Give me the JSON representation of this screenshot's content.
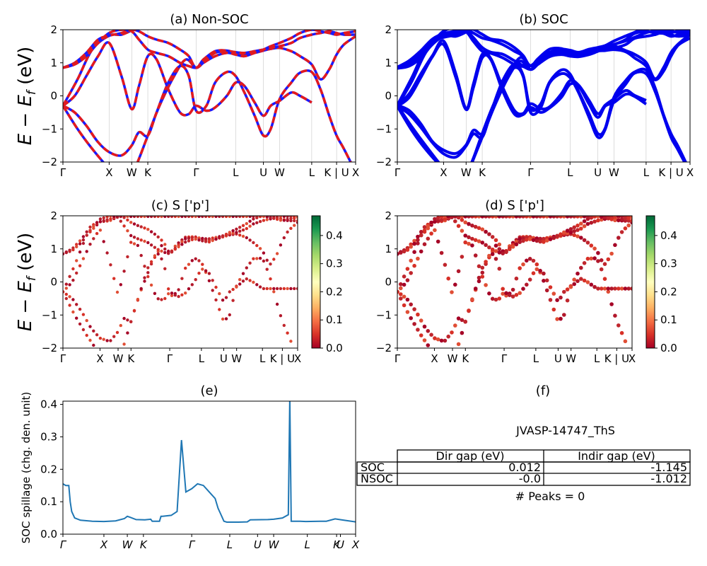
{
  "colors": {
    "nonsoc_a": "#e41a1c",
    "nonsoc_b": "#1a1aff",
    "soc": "#0000ee",
    "spillage": "#1f77b4"
  },
  "chart_data": [
    {
      "id": "a",
      "type": "line",
      "title": "(a) Non-SOC",
      "ylabel": "E − E_f (eV)",
      "ylim": [
        -2,
        2
      ],
      "yticks": [
        "2",
        "1",
        "0",
        "−1",
        "−2"
      ],
      "kpoints": [
        {
          "label": "Γ",
          "x": 0
        },
        {
          "label": "X",
          "x": 0.158
        },
        {
          "label": "W",
          "x": 0.235
        },
        {
          "label": "K",
          "x": 0.29
        },
        {
          "label": "Γ",
          "x": 0.455
        },
        {
          "label": "L",
          "x": 0.59
        },
        {
          "label": "U",
          "x": 0.685
        },
        {
          "label": "W",
          "x": 0.74
        },
        {
          "label": "L",
          "x": 0.85
        },
        {
          "label": "K | U",
          "x": 0.935
        },
        {
          "label": "X",
          "x": 1.0
        }
      ],
      "series": [
        {
          "x": [
            0,
            0.05,
            0.1,
            0.158,
            0.2,
            0.235
          ],
          "y": [
            -0.3,
            0.5,
            1.4,
            1.82,
            1.85,
            1.98
          ]
        },
        {
          "x": [
            0,
            0.05,
            0.1,
            0.158,
            0.2,
            0.235,
            0.26,
            0.29,
            0.33,
            0.38,
            0.42,
            0.455,
            0.48,
            0.52,
            0.56,
            0.59,
            0.62,
            0.655,
            0.685,
            0.71,
            0.74,
            0.78,
            0.81,
            0.85,
            0.88,
            0.91,
            0.935,
            0.96,
            1.0
          ],
          "y": [
            -0.3,
            -1.0,
            -1.6,
            -2.2,
            -2.5,
            -2.4,
            -1.9,
            -1.2,
            -0.3,
            0.6,
            1.1,
            0.85,
            1.1,
            1.35,
            1.37,
            1.3,
            1.25,
            1.3,
            1.37,
            1.42,
            1.45,
            1.35,
            1.2,
            0.95,
            0.5,
            0.8,
            1.25,
            1.55,
            1.8
          ]
        },
        {
          "x": [
            0,
            0.04,
            0.08,
            0.12,
            0.158,
            0.2,
            0.235,
            0.26,
            0.29,
            0.32,
            0.36,
            0.4,
            0.43,
            0.455,
            0.49,
            0.52,
            0.56,
            0.59,
            0.62,
            0.655,
            0.685,
            0.71,
            0.74,
            0.78,
            0.81,
            0.85,
            0.88,
            0.91,
            0.935,
            0.96,
            1.0
          ],
          "y": [
            -0.3,
            -0.5,
            -0.9,
            -1.4,
            -1.7,
            -1.8,
            -1.5,
            -1.1,
            -1.2,
            -0.5,
            0.4,
            0.9,
            0.6,
            -0.45,
            -0.3,
            0.4,
            0.72,
            0.6,
            0.1,
            -0.6,
            -1.2,
            -1.0,
            -0.1,
            0.4,
            0.7,
            0.72,
            0.2,
            -0.6,
            -1.2,
            -1.6,
            -2.3
          ]
        },
        {
          "x": [
            0,
            0.04,
            0.08,
            0.12,
            0.158,
            0.2,
            0.235,
            0.26,
            0.29,
            0.32,
            0.36,
            0.4,
            0.43,
            0.455,
            0.49,
            0.52,
            0.56,
            0.59,
            0.62,
            0.655,
            0.685,
            0.71,
            0.74,
            0.78,
            0.81,
            0.85
          ],
          "y": [
            -0.3,
            0,
            0.6,
            1.2,
            1.6,
            0.6,
            -0.4,
            0.3,
            1.2,
            1.1,
            0.2,
            -0.5,
            -0.55,
            -0.3,
            -0.45,
            -0.35,
            0.0,
            0.4,
            0.3,
            -0.2,
            -0.6,
            -0.3,
            -0.15,
            0.1,
            0.0,
            -0.2
          ]
        },
        {
          "x": [
            0,
            0.04,
            0.08,
            0.12,
            0.158,
            0.2,
            0.235,
            0.26,
            0.29,
            0.32,
            0.36,
            0.4,
            0.43,
            0.455,
            0.49,
            0.52,
            0.56,
            0.59,
            0.62,
            0.655,
            0.685,
            0.71,
            0.74,
            0.78,
            0.81,
            0.85,
            0.88,
            0.91,
            0.935,
            0.96,
            1.0
          ],
          "y": [
            0.85,
            1.0,
            1.3,
            1.7,
            1.82,
            1.9,
            2.0,
            1.95,
            1.8,
            1.7,
            1.6,
            1.4,
            1.2,
            0.85,
            1.1,
            1.3,
            1.35,
            1.32,
            1.3,
            1.35,
            1.4,
            1.45,
            1.5,
            1.6,
            1.75,
            1.85,
            1.9,
            1.95,
            1.9,
            1.85,
            1.85
          ]
        },
        {
          "x": [
            0,
            0.04,
            0.08,
            0.12,
            0.158,
            0.2,
            0.235,
            0.26,
            0.29,
            0.32,
            0.36,
            0.4,
            0.43,
            0.455,
            0.48,
            0.52,
            0.56,
            0.59,
            0.62,
            0.655,
            0.685,
            0.71,
            0.74,
            0.78,
            0.81,
            0.85,
            0.88,
            0.91,
            0.935,
            0.96,
            1.0
          ],
          "y": [
            0.85,
            0.95,
            1.2,
            1.6,
            1.9,
            2.0,
            1.95,
            1.7,
            1.4,
            1.3,
            1.2,
            1.0,
            0.9,
            0.85,
            1.0,
            1.2,
            1.3,
            1.25,
            1.2,
            1.3,
            1.4,
            1.5,
            1.6,
            1.75,
            1.9,
            2.0,
            1.95,
            1.9,
            1.85,
            1.9,
            1.95
          ]
        }
      ]
    },
    {
      "id": "b",
      "type": "line",
      "title": "(b) SOC",
      "ylim": [
        -2,
        2
      ],
      "yticks": [
        "2",
        "1",
        "0",
        "−1",
        "−2"
      ],
      "kpoints": [
        {
          "label": "Γ",
          "x": 0
        },
        {
          "label": "X",
          "x": 0.158
        },
        {
          "label": "W",
          "x": 0.235
        },
        {
          "label": "K",
          "x": 0.29
        },
        {
          "label": "Γ",
          "x": 0.455
        },
        {
          "label": "L",
          "x": 0.59
        },
        {
          "label": "U",
          "x": 0.685
        },
        {
          "label": "W",
          "x": 0.74
        },
        {
          "label": "L",
          "x": 0.85
        },
        {
          "label": "K | U",
          "x": 0.935
        },
        {
          "label": "X",
          "x": 1.0
        }
      ]
    },
    {
      "id": "c",
      "type": "scatter",
      "title": "(c)  S ['p']",
      "ylabel": "E − E_f (eV)",
      "ylim": [
        -2,
        2
      ],
      "yticks": [
        "2",
        "1",
        "0",
        "−1",
        "−2"
      ],
      "colorbar": {
        "min": 0.0,
        "max": 0.47,
        "ticks": [
          "0.4",
          "0.3",
          "0.2",
          "0.1",
          "0.0"
        ]
      },
      "kpoints": [
        {
          "label": "Γ",
          "x": 0
        },
        {
          "label": "X",
          "x": 0.158
        },
        {
          "label": "W",
          "x": 0.235
        },
        {
          "label": "K",
          "x": 0.29
        },
        {
          "label": "Γ",
          "x": 0.455
        },
        {
          "label": "L",
          "x": 0.59
        },
        {
          "label": "U",
          "x": 0.685
        },
        {
          "label": "W",
          "x": 0.74
        },
        {
          "label": "L",
          "x": 0.85
        },
        {
          "label": "K | U",
          "x": 0.935
        },
        {
          "label": "X",
          "x": 1.0
        }
      ]
    },
    {
      "id": "d",
      "type": "scatter",
      "title": "(d) S ['p']",
      "ylim": [
        -2,
        2
      ],
      "yticks": [
        "2",
        "1",
        "0",
        "−1",
        "−2"
      ],
      "colorbar": {
        "min": 0.0,
        "max": 0.47,
        "ticks": [
          "0.4",
          "0.3",
          "0.2",
          "0.1",
          "0.0"
        ]
      },
      "kpoints": [
        {
          "label": "Γ",
          "x": 0
        },
        {
          "label": "X",
          "x": 0.158
        },
        {
          "label": "W",
          "x": 0.235
        },
        {
          "label": "K",
          "x": 0.29
        },
        {
          "label": "Γ",
          "x": 0.455
        },
        {
          "label": "L",
          "x": 0.59
        },
        {
          "label": "U",
          "x": 0.685
        },
        {
          "label": "W",
          "x": 0.74
        },
        {
          "label": "L",
          "x": 0.85
        },
        {
          "label": "K | U",
          "x": 0.935
        },
        {
          "label": "X",
          "x": 1.0
        }
      ]
    },
    {
      "id": "e",
      "type": "line",
      "title": "(e)",
      "ylabel": "SOC spillage (chg. den. unit)",
      "ylim": [
        0,
        0.41
      ],
      "yticks": [
        {
          "label": "0.4",
          "v": 0.4
        },
        {
          "label": "0.3",
          "v": 0.3
        },
        {
          "label": "0.2",
          "v": 0.2
        },
        {
          "label": "0.1",
          "v": 0.1
        },
        {
          "label": "0.0",
          "v": 0.0
        }
      ],
      "kpoints": [
        {
          "label": "Γ",
          "x": 0
        },
        {
          "label": "X",
          "x": 0.14
        },
        {
          "label": "W",
          "x": 0.22
        },
        {
          "label": "K",
          "x": 0.275
        },
        {
          "label": "Γ",
          "x": 0.44
        },
        {
          "label": "L",
          "x": 0.57
        },
        {
          "label": "U",
          "x": 0.665
        },
        {
          "label": "W",
          "x": 0.72
        },
        {
          "label": "L",
          "x": 0.835
        },
        {
          "label": "K",
          "x": 0.935
        },
        {
          "label": "U",
          "x": 0.948
        },
        {
          "label": "X",
          "x": 1.0
        }
      ],
      "x": [
        0,
        0.01,
        0.02,
        0.025,
        0.03,
        0.04,
        0.06,
        0.1,
        0.14,
        0.18,
        0.21,
        0.22,
        0.23,
        0.25,
        0.28,
        0.3,
        0.305,
        0.33,
        0.335,
        0.34,
        0.37,
        0.39,
        0.405,
        0.42,
        0.44,
        0.46,
        0.48,
        0.5,
        0.52,
        0.53,
        0.54,
        0.55,
        0.56,
        0.6,
        0.63,
        0.64,
        0.7,
        0.72,
        0.75,
        0.77,
        0.775,
        0.78,
        0.79,
        0.81,
        0.83,
        0.88,
        0.9,
        0.93,
        0.96,
        1.0
      ],
      "y": [
        0.155,
        0.15,
        0.15,
        0.1,
        0.07,
        0.05,
        0.043,
        0.04,
        0.039,
        0.041,
        0.048,
        0.055,
        0.052,
        0.045,
        0.044,
        0.046,
        0.04,
        0.04,
        0.055,
        0.055,
        0.058,
        0.07,
        0.29,
        0.13,
        0.14,
        0.155,
        0.15,
        0.13,
        0.11,
        0.08,
        0.06,
        0.04,
        0.037,
        0.037,
        0.038,
        0.044,
        0.045,
        0.046,
        0.05,
        0.06,
        0.42,
        0.04,
        0.04,
        0.04,
        0.039,
        0.04,
        0.04,
        0.047,
        0.043,
        0.038
      ]
    }
  ],
  "panel_f": {
    "title": "(f)",
    "material": "JVASP-14747_ThS",
    "headers": [
      "Dir gap (eV)",
      "Indir gap (eV)"
    ],
    "rows": [
      {
        "label": "SOC",
        "dir": "0.012",
        "indir": "-1.145"
      },
      {
        "label": "NSOC",
        "dir": "-0.0",
        "indir": "-1.012"
      }
    ],
    "peaks": "# Peaks = 0"
  }
}
